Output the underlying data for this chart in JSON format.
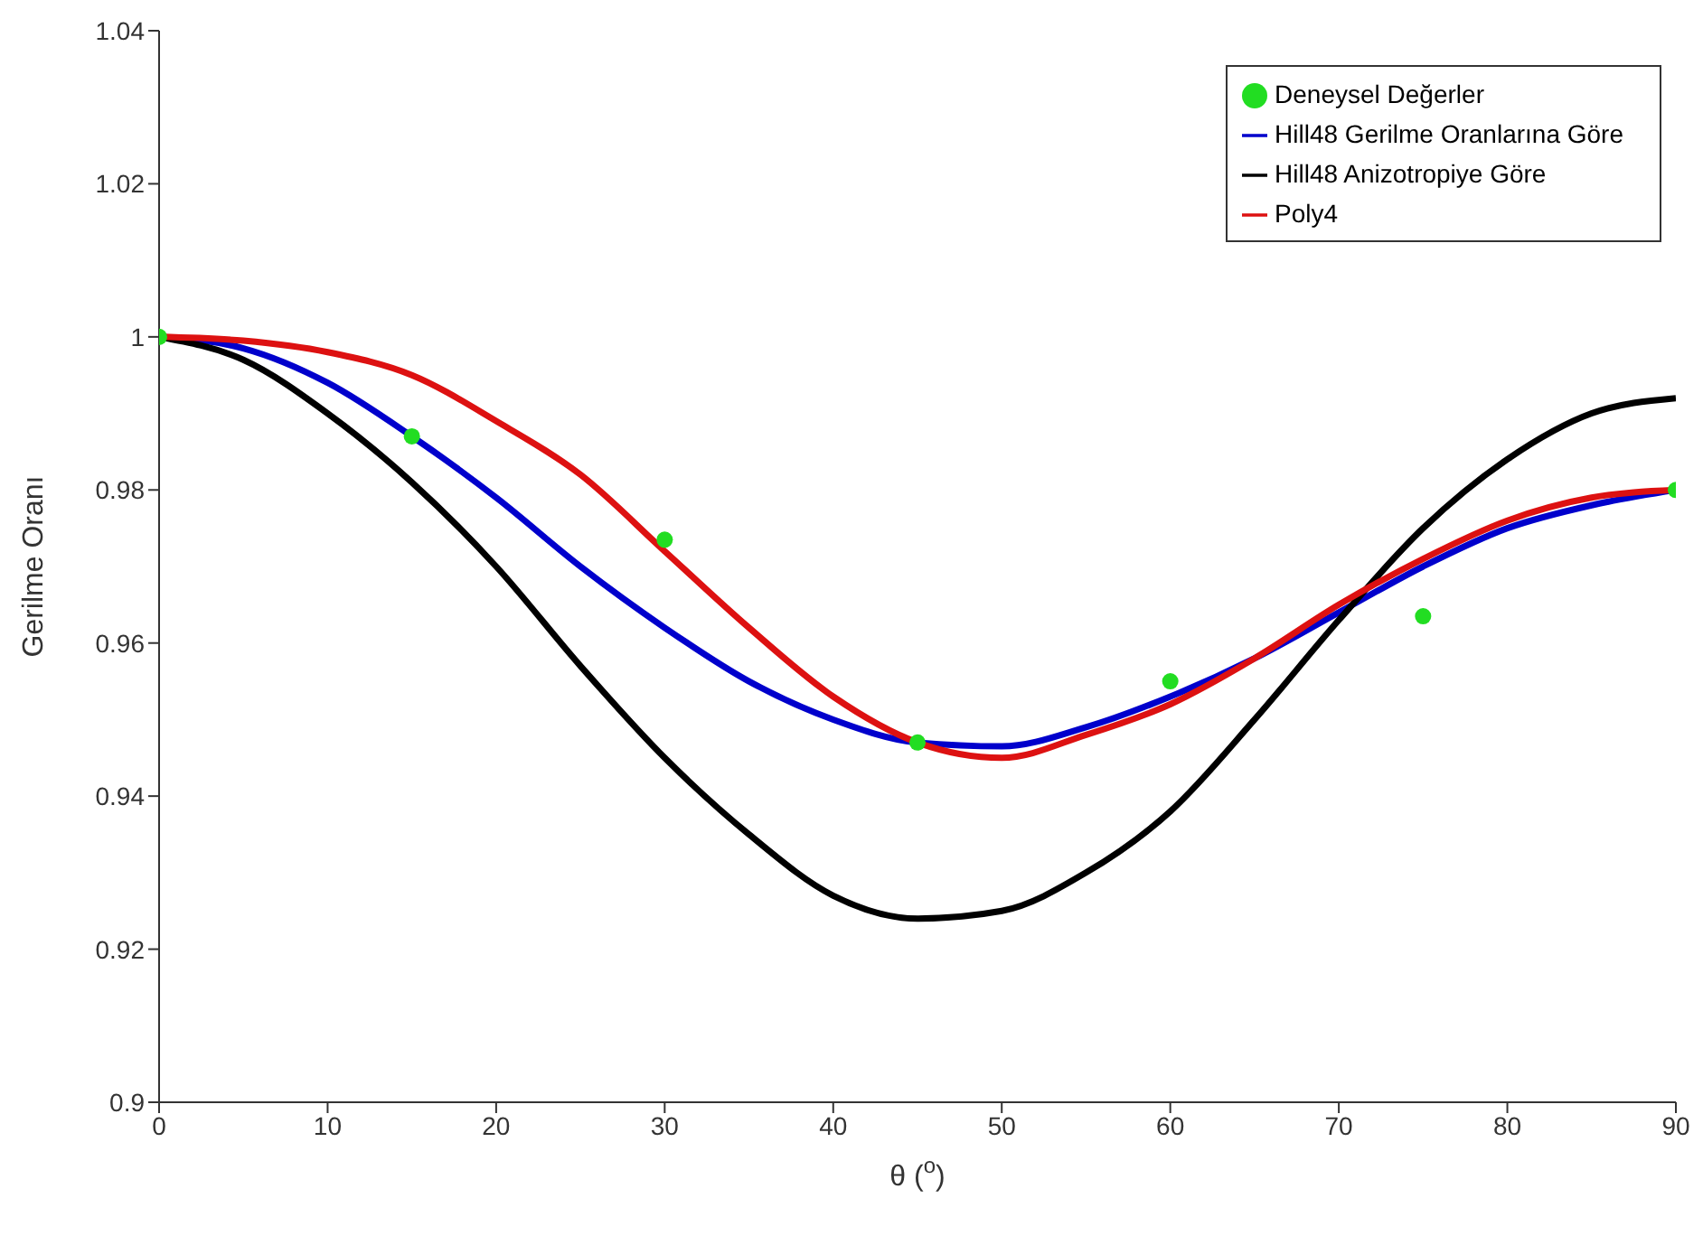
{
  "chart_data": {
    "type": "line",
    "xlabel": "θ ($^{o}$)",
    "ylabel": "Gerilme Oranı",
    "xlim": [
      0,
      90
    ],
    "xticks": [
      0,
      10,
      20,
      30,
      40,
      50,
      60,
      70,
      80,
      90
    ],
    "ylim": [
      0.9,
      1.04
    ],
    "yticks": [
      0.9,
      0.92,
      0.94,
      0.96,
      0.98,
      1,
      1.02,
      1.04
    ],
    "legend": "top right",
    "series": [
      {
        "name": "Deneysel Değerler",
        "type": "scatter",
        "marker": "circle",
        "color": "#22dd22",
        "x": [
          0,
          15,
          30,
          45,
          60,
          75,
          90
        ],
        "values": [
          1,
          0.987,
          0.9735,
          0.947,
          0.955,
          0.9635,
          0.98
        ]
      },
      {
        "name": "Hill48 Gerilme Oranlarına Göre",
        "marker": "none",
        "color": "#0000cc",
        "x": [
          0,
          5,
          10,
          15,
          20,
          25,
          30,
          35,
          40,
          45,
          50,
          55,
          60,
          65,
          70,
          75,
          80,
          85,
          90
        ],
        "values": [
          1,
          0.9985,
          0.994,
          0.987,
          0.979,
          0.97,
          0.962,
          0.955,
          0.95,
          0.947,
          0.9465,
          0.949,
          0.953,
          0.958,
          0.964,
          0.97,
          0.975,
          0.978,
          0.98
        ]
      },
      {
        "name": "Hill48 Anizotropiye Göre",
        "marker": "none",
        "color": "#000000",
        "x": [
          0,
          5,
          10,
          15,
          20,
          25,
          30,
          35,
          40,
          45,
          50,
          55,
          60,
          65,
          70,
          75,
          80,
          85,
          90
        ],
        "values": [
          1,
          0.997,
          0.99,
          0.981,
          0.97,
          0.957,
          0.945,
          0.935,
          0.927,
          0.924,
          0.925,
          0.93,
          0.938,
          0.95,
          0.963,
          0.975,
          0.984,
          0.99,
          0.992
        ]
      },
      {
        "name": "Poly4",
        "marker": "none",
        "color": "#dd1111",
        "x": [
          0,
          5,
          10,
          15,
          20,
          25,
          30,
          35,
          40,
          45,
          50,
          55,
          60,
          65,
          70,
          75,
          80,
          85,
          90
        ],
        "values": [
          1,
          0.9995,
          0.998,
          0.995,
          0.989,
          0.982,
          0.972,
          0.962,
          0.953,
          0.947,
          0.945,
          0.948,
          0.952,
          0.958,
          0.965,
          0.971,
          0.976,
          0.979,
          0.98
        ]
      }
    ]
  }
}
